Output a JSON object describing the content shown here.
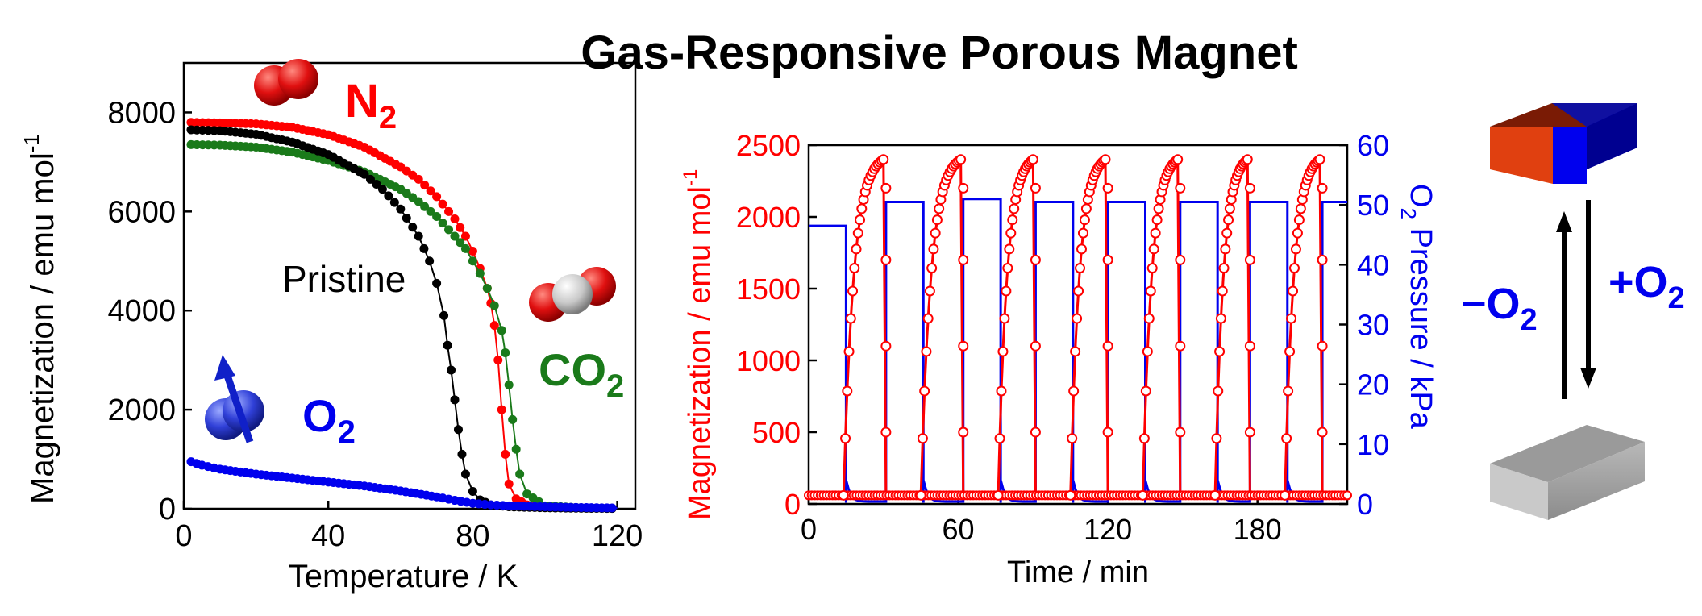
{
  "title": "Gas-Responsive Porous Magnet",
  "colors": {
    "n2": "#ff0000",
    "co2": "#1a7a1a",
    "o2": "#0000ee",
    "pristine": "#000000",
    "magnetization": "#ff0000",
    "pressure": "#0000ee"
  },
  "icons": [
    "n2-molecule-icon",
    "co2-molecule-icon",
    "o2-molecule-icon",
    "red-blue-magnet-icon",
    "gray-bar-icon",
    "equilibrium-arrows-icon"
  ],
  "labels": {
    "n2": "N",
    "n2_sub": "2",
    "co2": "CO",
    "co2_sub": "2",
    "o2": "O",
    "o2_sub": "2",
    "pristine": "Pristine",
    "minus_o2": "−O",
    "minus_o2_sub": "2",
    "plus_o2": "+O",
    "plus_o2_sub": "2"
  },
  "chart_data": [
    {
      "type": "scatter",
      "xlabel": "Temperature / K",
      "ylabel": "Magnetization / emu mol",
      "ylabel_sup": "-1",
      "xlim": [
        0,
        125
      ],
      "ylim": [
        0,
        9000
      ],
      "xticks": [
        0,
        40,
        80,
        120
      ],
      "yticks": [
        0,
        2000,
        4000,
        6000,
        8000
      ],
      "series": [
        {
          "name": "N2",
          "x": [
            2,
            10,
            20,
            30,
            40,
            50,
            60,
            65,
            70,
            75,
            78,
            80,
            82,
            84,
            85,
            86,
            87,
            88,
            89,
            90,
            92,
            95,
            100,
            110,
            120
          ],
          "values": [
            7800,
            7790,
            7770,
            7700,
            7550,
            7300,
            6900,
            6650,
            6300,
            5850,
            5500,
            5200,
            4850,
            4450,
            4150,
            3700,
            3000,
            2000,
            1100,
            500,
            200,
            80,
            40,
            20,
            10
          ]
        },
        {
          "name": "CO2",
          "x": [
            2,
            10,
            20,
            30,
            40,
            50,
            60,
            65,
            70,
            75,
            78,
            80,
            82,
            84,
            86,
            88,
            89,
            90,
            91,
            92,
            93,
            95,
            100,
            110,
            120
          ],
          "values": [
            7350,
            7340,
            7300,
            7200,
            7030,
            6800,
            6450,
            6200,
            5900,
            5500,
            5250,
            5000,
            4750,
            4450,
            4100,
            3600,
            3150,
            2500,
            1800,
            1200,
            700,
            300,
            60,
            20,
            10
          ]
        },
        {
          "name": "Pristine",
          "x": [
            2,
            10,
            20,
            30,
            40,
            50,
            55,
            60,
            65,
            68,
            70,
            72,
            73,
            74,
            75,
            76,
            77,
            78,
            80,
            82,
            85,
            90,
            100,
            110,
            120
          ],
          "values": [
            7650,
            7630,
            7560,
            7400,
            7150,
            6750,
            6450,
            6050,
            5500,
            5000,
            4550,
            3900,
            3300,
            2800,
            2200,
            1600,
            1100,
            700,
            350,
            180,
            80,
            40,
            20,
            10,
            5
          ]
        },
        {
          "name": "O2",
          "x": [
            2,
            5,
            10,
            20,
            30,
            40,
            50,
            60,
            70,
            75,
            80,
            85,
            90,
            100,
            110,
            120
          ],
          "values": [
            950,
            880,
            800,
            700,
            620,
            540,
            460,
            360,
            240,
            170,
            110,
            80,
            60,
            40,
            25,
            15
          ]
        }
      ]
    },
    {
      "type": "line",
      "xlabel": "Time / min",
      "ylabel": "Magnetization / emu mol",
      "ylabel_sup": "-1",
      "ylabel_right": "O",
      "ylabel_right_sub": "2",
      "ylabel_right_rest": " Pressure / kPa",
      "xlim": [
        0,
        216
      ],
      "ylim": [
        0,
        2500
      ],
      "ylim_right": [
        0,
        60
      ],
      "xticks": [
        0,
        60,
        120,
        180
      ],
      "yticks": [
        0,
        500,
        1000,
        1500,
        2000,
        2500
      ],
      "yticks_right": [
        0,
        10,
        20,
        30,
        40,
        50,
        60
      ],
      "series": [
        {
          "name": "Magnetization",
          "axis": "left",
          "cycles": [
            {
              "rise_start": 14,
              "peak": 30,
              "drop": 31
            },
            {
              "rise_start": 45,
              "peak": 61,
              "drop": 62
            },
            {
              "rise_start": 76,
              "peak": 90,
              "drop": 91
            },
            {
              "rise_start": 105,
              "peak": 119,
              "drop": 120
            },
            {
              "rise_start": 134,
              "peak": 148,
              "drop": 149
            },
            {
              "rise_start": 163,
              "peak": 176,
              "drop": 177
            },
            {
              "rise_start": 191,
              "peak": 205,
              "drop": 206
            }
          ],
          "low": 60,
          "high": 2400
        },
        {
          "name": "O2 Pressure",
          "axis": "right",
          "segments": [
            {
              "start": 0,
              "end": 15,
              "value": 46.5
            },
            {
              "start": 31,
              "end": 46,
              "value": 50.5
            },
            {
              "start": 62,
              "end": 77,
              "value": 51
            },
            {
              "start": 91,
              "end": 106,
              "value": 50.5
            },
            {
              "start": 120,
              "end": 135,
              "value": 50.5
            },
            {
              "start": 149,
              "end": 164,
              "value": 50.5
            },
            {
              "start": 177,
              "end": 192,
              "value": 50.5
            },
            {
              "start": 206,
              "end": 216,
              "value": 50.5
            }
          ],
          "low": 0.4
        }
      ]
    }
  ]
}
